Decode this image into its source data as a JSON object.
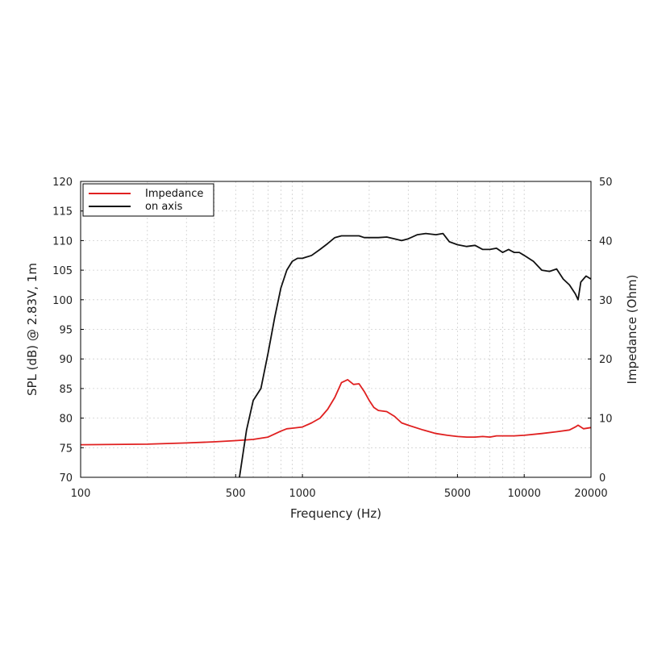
{
  "chart_data": {
    "type": "line",
    "xlabel": "Frequency (Hz)",
    "ylabel_left": "SPL (dB) @ 2.83V, 1m",
    "ylabel_right": "Impedance (Ohm)",
    "x_scale": "log",
    "xlim": [
      100,
      20000
    ],
    "ylim_left": [
      70,
      120
    ],
    "ylim_right": [
      0,
      50
    ],
    "x_ticks": [
      100,
      500,
      1000,
      5000,
      10000,
      20000
    ],
    "x_tick_labels": [
      "100",
      "500",
      "1000",
      "5000",
      "10000",
      "20000"
    ],
    "y_left_ticks": [
      70,
      75,
      80,
      85,
      90,
      95,
      100,
      105,
      110,
      115,
      120
    ],
    "y_left_tick_labels": [
      "70",
      "75",
      "80",
      "85",
      "90",
      "95",
      "100",
      "105",
      "110",
      "115",
      "120"
    ],
    "y_right_ticks": [
      0,
      10,
      20,
      30,
      40,
      50
    ],
    "y_right_tick_labels": [
      "0",
      "10",
      "20",
      "30",
      "40",
      "50"
    ],
    "grid": true,
    "legend_position": "top-left",
    "series": [
      {
        "name": "Impedance",
        "color": "#e02020",
        "axis": "right",
        "x": [
          100,
          200,
          300,
          400,
          500,
          600,
          700,
          800,
          850,
          900,
          1000,
          1100,
          1200,
          1300,
          1400,
          1500,
          1600,
          1700,
          1800,
          1900,
          2000,
          2100,
          2200,
          2400,
          2600,
          2800,
          3000,
          3500,
          4000,
          4500,
          5000,
          5500,
          6000,
          6500,
          7000,
          7500,
          8000,
          9000,
          10000,
          12000,
          14000,
          16000,
          17000,
          17500,
          18500,
          20000
        ],
        "values": [
          5.5,
          5.6,
          5.8,
          6.0,
          6.2,
          6.4,
          6.8,
          7.8,
          8.2,
          8.3,
          8.5,
          9.2,
          10.0,
          11.5,
          13.5,
          16.0,
          16.5,
          15.7,
          15.8,
          14.5,
          13.0,
          11.8,
          11.3,
          11.1,
          10.3,
          9.2,
          8.8,
          8.0,
          7.4,
          7.1,
          6.9,
          6.8,
          6.8,
          6.9,
          6.8,
          7.0,
          7.0,
          7.0,
          7.1,
          7.4,
          7.7,
          8.0,
          8.5,
          8.8,
          8.2,
          8.4
        ]
      },
      {
        "name": "on axis",
        "color": "#111111",
        "axis": "left",
        "x": [
          520,
          560,
          600,
          650,
          700,
          750,
          800,
          850,
          900,
          950,
          1000,
          1100,
          1200,
          1300,
          1400,
          1500,
          1600,
          1700,
          1800,
          1900,
          2000,
          2200,
          2400,
          2600,
          2800,
          3000,
          3300,
          3600,
          4000,
          4300,
          4600,
          5000,
          5500,
          6000,
          6500,
          7000,
          7500,
          8000,
          8500,
          9000,
          9500,
          10000,
          11000,
          12000,
          13000,
          14000,
          15000,
          16000,
          17000,
          17500,
          18000,
          19000,
          20000
        ],
        "values": [
          70,
          78,
          83,
          85,
          91,
          97,
          102,
          105,
          106.5,
          107,
          107,
          107.5,
          108.5,
          109.5,
          110.5,
          110.8,
          110.8,
          110.8,
          110.8,
          110.5,
          110.5,
          110.5,
          110.6,
          110.3,
          110.0,
          110.3,
          111.0,
          111.2,
          111.0,
          111.2,
          109.8,
          109.3,
          109.0,
          109.2,
          108.5,
          108.5,
          108.7,
          108.0,
          108.5,
          108.0,
          108.0,
          107.5,
          106.5,
          105.0,
          104.8,
          105.2,
          103.5,
          102.5,
          101.0,
          100.0,
          103.0,
          104.0,
          103.5
        ]
      }
    ]
  }
}
